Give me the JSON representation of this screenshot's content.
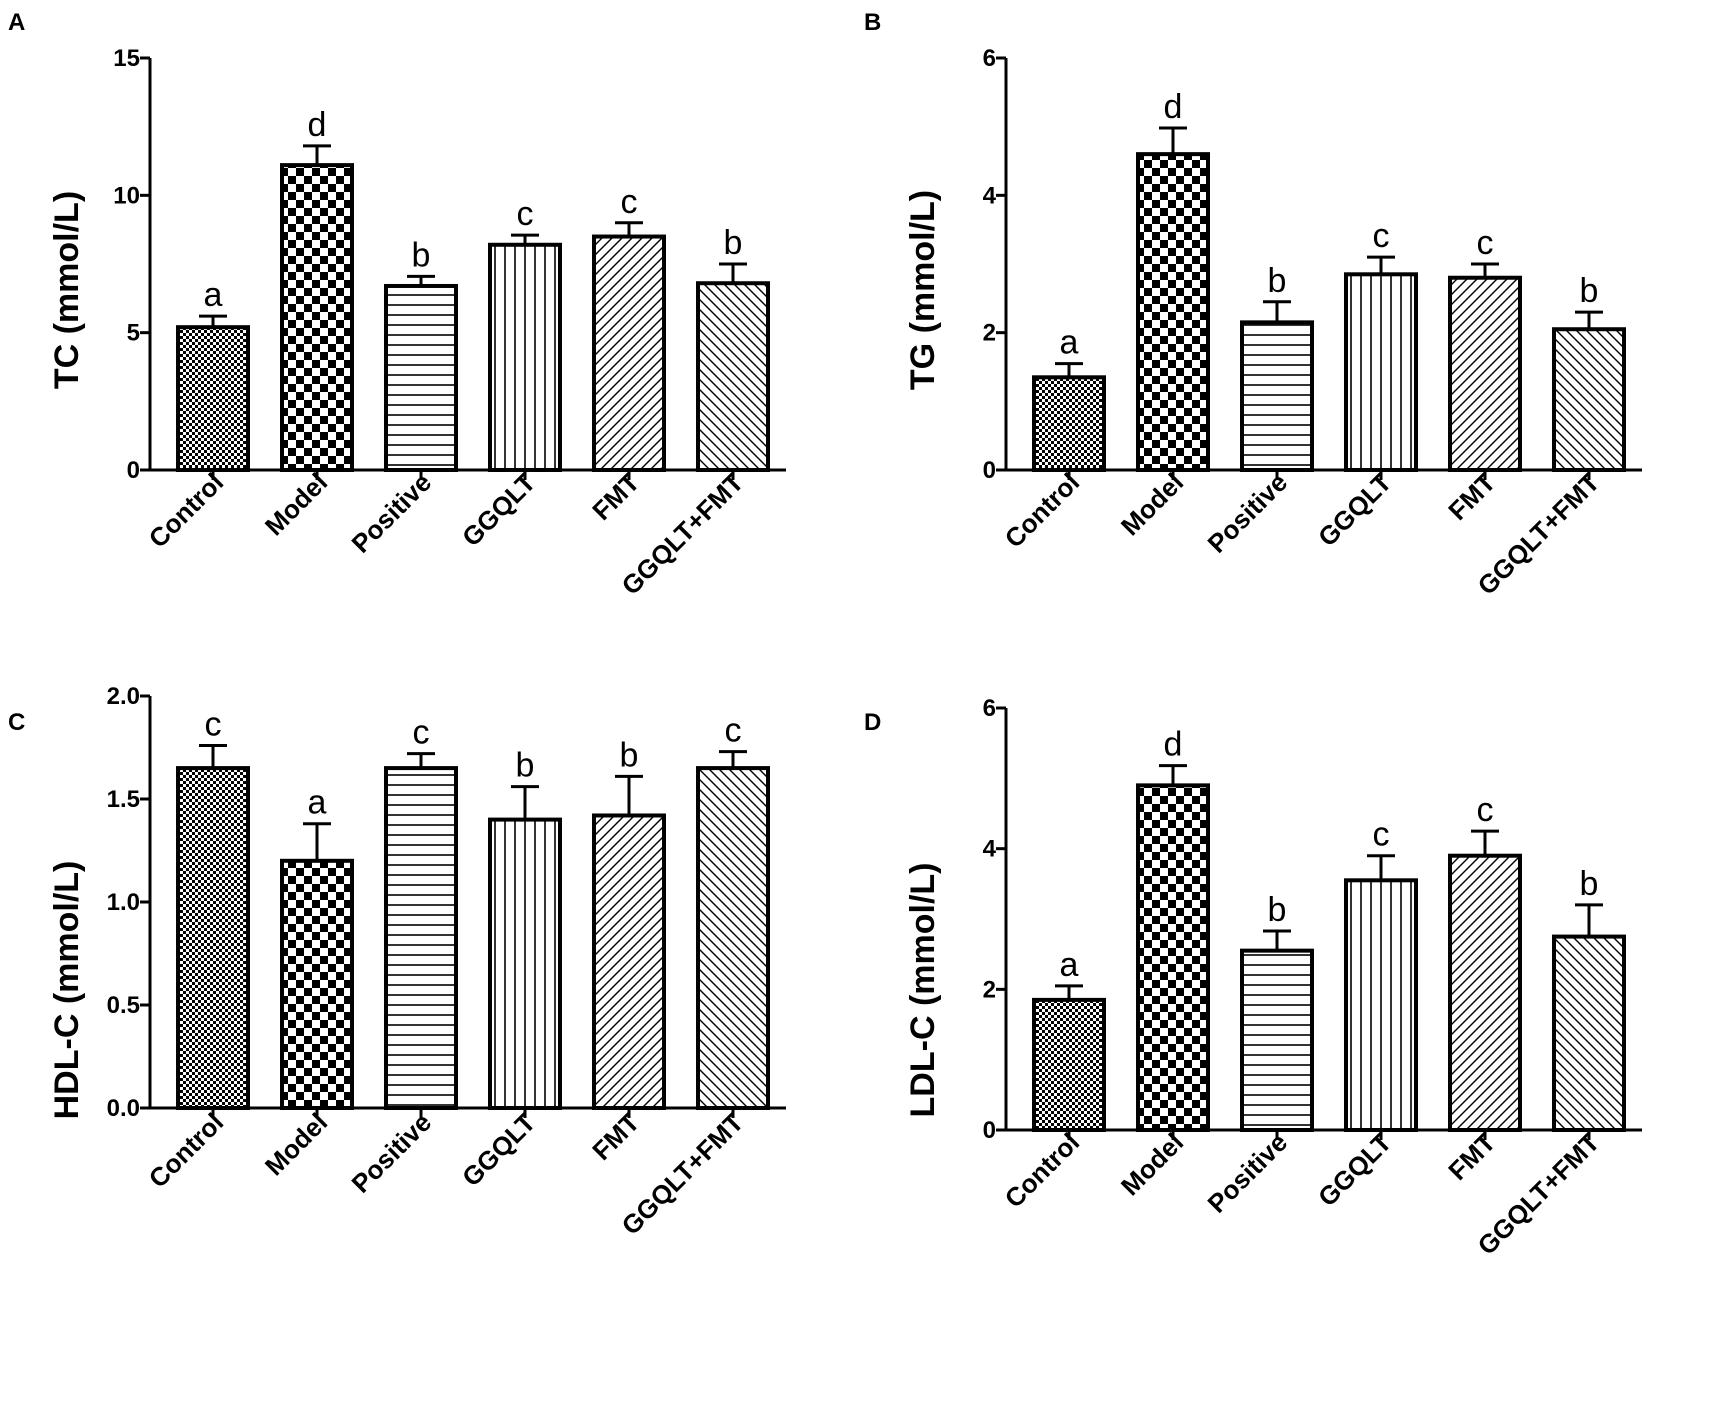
{
  "chart_data": [
    {
      "type": "bar",
      "panel": "A",
      "ylabel": "TC (mmol/L)",
      "ylim": [
        0,
        15
      ],
      "yticks": [
        "0",
        "5",
        "10",
        "15"
      ],
      "categories": [
        "Control",
        "Model",
        "Positive",
        "GGQLT",
        "FMT",
        "GGQLT+FMT"
      ],
      "values": [
        5.2,
        11.1,
        6.7,
        8.2,
        8.5,
        6.8
      ],
      "errors": [
        0.4,
        0.7,
        0.35,
        0.35,
        0.5,
        0.7
      ],
      "letters": [
        "a",
        "d",
        "b",
        "c",
        "c",
        "b"
      ]
    },
    {
      "type": "bar",
      "panel": "B",
      "ylabel": "TG (mmol/L)",
      "ylim": [
        0,
        6
      ],
      "yticks": [
        "0",
        "2",
        "4",
        "6"
      ],
      "categories": [
        "Control",
        "Model",
        "Positive",
        "GGQLT",
        "FMT",
        "GGQLT+FMT"
      ],
      "values": [
        1.35,
        4.6,
        2.15,
        2.85,
        2.8,
        2.05
      ],
      "errors": [
        0.2,
        0.38,
        0.3,
        0.25,
        0.2,
        0.25
      ],
      "letters": [
        "a",
        "d",
        "b",
        "c",
        "c",
        "b"
      ]
    },
    {
      "type": "bar",
      "panel": "C",
      "ylabel": "HDL-C (mmol/L)",
      "ylim": [
        0,
        2.0
      ],
      "yticks": [
        "0.0",
        "0.5",
        "1.0",
        "1.5",
        "2.0"
      ],
      "categories": [
        "Control",
        "Model",
        "Positive",
        "GGQLT",
        "FMT",
        "GGQLT+FMT"
      ],
      "values": [
        1.65,
        1.2,
        1.65,
        1.4,
        1.42,
        1.65
      ],
      "errors": [
        0.11,
        0.18,
        0.07,
        0.16,
        0.19,
        0.08
      ],
      "letters": [
        "c",
        "a",
        "c",
        "b",
        "b",
        "c"
      ]
    },
    {
      "type": "bar",
      "panel": "D",
      "ylabel": "LDL-C (mmol/L)",
      "ylim": [
        0,
        6
      ],
      "yticks": [
        "0",
        "2",
        "4",
        "6"
      ],
      "categories": [
        "Control",
        "Model",
        "Positive",
        "GGQLT",
        "FMT",
        "GGQLT+FMT"
      ],
      "values": [
        1.85,
        4.9,
        2.55,
        3.55,
        3.9,
        2.75
      ],
      "errors": [
        0.2,
        0.28,
        0.28,
        0.35,
        0.35,
        0.45
      ],
      "letters": [
        "a",
        "d",
        "b",
        "c",
        "c",
        "b"
      ]
    }
  ]
}
